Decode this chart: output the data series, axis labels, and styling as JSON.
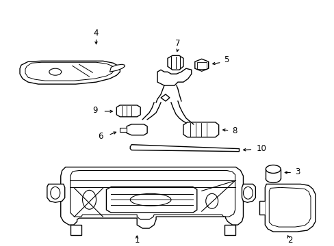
{
  "background_color": "#ffffff",
  "line_color": "#000000",
  "line_width": 1.0,
  "label_fontsize": 8.5
}
